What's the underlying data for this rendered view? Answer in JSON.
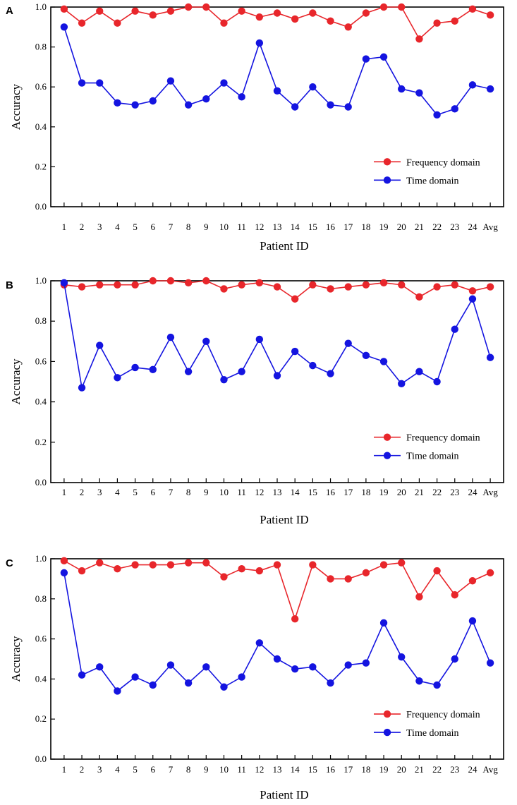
{
  "chart_data": [
    {
      "panel": "A",
      "type": "line",
      "xlabel": "Patient ID",
      "ylabel": "Accuracy",
      "ylim": [
        0,
        1.0
      ],
      "yticks": [
        "0.0",
        "0.2",
        "0.4",
        "0.6",
        "0.8",
        "1.0"
      ],
      "categories": [
        "1",
        "2",
        "3",
        "4",
        "5",
        "6",
        "7",
        "8",
        "9",
        "10",
        "11",
        "12",
        "13",
        "14",
        "15",
        "16",
        "17",
        "18",
        "19",
        "20",
        "21",
        "22",
        "23",
        "24",
        "Avg"
      ],
      "legend_position": "bottom-right",
      "series": [
        {
          "name": "Frequency domain",
          "color": "#e8262b",
          "values": [
            0.99,
            0.92,
            0.98,
            0.92,
            0.98,
            0.96,
            0.98,
            1.0,
            1.0,
            0.92,
            0.98,
            0.95,
            0.97,
            0.94,
            0.97,
            0.93,
            0.9,
            0.97,
            1.0,
            1.0,
            0.84,
            0.92,
            0.93,
            0.99,
            0.96
          ]
        },
        {
          "name": "Time domain",
          "color": "#1414e0",
          "values": [
            0.9,
            0.62,
            0.62,
            0.52,
            0.51,
            0.53,
            0.63,
            0.51,
            0.54,
            0.62,
            0.55,
            0.82,
            0.58,
            0.5,
            0.6,
            0.51,
            0.5,
            0.74,
            0.75,
            0.59,
            0.57,
            0.46,
            0.49,
            0.61,
            0.59
          ]
        }
      ]
    },
    {
      "panel": "B",
      "type": "line",
      "xlabel": "Patient ID",
      "ylabel": "Accuracy",
      "ylim": [
        0,
        1.0
      ],
      "yticks": [
        "0.0",
        "0.2",
        "0.4",
        "0.6",
        "0.8",
        "1.0"
      ],
      "categories": [
        "1",
        "2",
        "3",
        "4",
        "5",
        "6",
        "7",
        "8",
        "9",
        "10",
        "11",
        "12",
        "13",
        "14",
        "15",
        "16",
        "17",
        "18",
        "19",
        "20",
        "21",
        "22",
        "23",
        "24",
        "Avg"
      ],
      "legend_position": "bottom-right",
      "series": [
        {
          "name": "Frequency domain",
          "color": "#e8262b",
          "values": [
            0.98,
            0.97,
            0.98,
            0.98,
            0.98,
            1.0,
            1.0,
            0.99,
            1.0,
            0.96,
            0.98,
            0.99,
            0.97,
            0.91,
            0.98,
            0.96,
            0.97,
            0.98,
            0.99,
            0.98,
            0.92,
            0.97,
            0.98,
            0.95,
            0.97
          ]
        },
        {
          "name": "Time domain",
          "color": "#1414e0",
          "values": [
            0.99,
            0.47,
            0.68,
            0.52,
            0.57,
            0.56,
            0.72,
            0.55,
            0.7,
            0.51,
            0.55,
            0.71,
            0.53,
            0.65,
            0.58,
            0.54,
            0.69,
            0.63,
            0.6,
            0.49,
            0.55,
            0.5,
            0.76,
            0.91,
            0.62
          ]
        }
      ]
    },
    {
      "panel": "C",
      "type": "line",
      "xlabel": "Patient ID",
      "ylabel": "Accuracy",
      "ylim": [
        0,
        1.0
      ],
      "yticks": [
        "0.0",
        "0.2",
        "0.4",
        "0.6",
        "0.8",
        "1.0"
      ],
      "categories": [
        "1",
        "2",
        "3",
        "4",
        "5",
        "6",
        "7",
        "8",
        "9",
        "10",
        "11",
        "12",
        "13",
        "14",
        "15",
        "16",
        "17",
        "18",
        "19",
        "20",
        "21",
        "22",
        "23",
        "24",
        "Avg"
      ],
      "legend_position": "bottom-right",
      "series": [
        {
          "name": "Frequency domain",
          "color": "#e8262b",
          "values": [
            0.99,
            0.94,
            0.98,
            0.95,
            0.97,
            0.97,
            0.97,
            0.98,
            0.98,
            0.91,
            0.95,
            0.94,
            0.97,
            0.7,
            0.97,
            0.9,
            0.9,
            0.93,
            0.97,
            0.98,
            0.81,
            0.94,
            0.82,
            0.89,
            0.93
          ]
        },
        {
          "name": "Time domain",
          "color": "#1414e0",
          "values": [
            0.93,
            0.42,
            0.46,
            0.34,
            0.41,
            0.37,
            0.47,
            0.38,
            0.46,
            0.36,
            0.41,
            0.58,
            0.5,
            0.45,
            0.46,
            0.38,
            0.47,
            0.48,
            0.68,
            0.51,
            0.39,
            0.37,
            0.5,
            0.69,
            0.48
          ]
        }
      ]
    }
  ]
}
